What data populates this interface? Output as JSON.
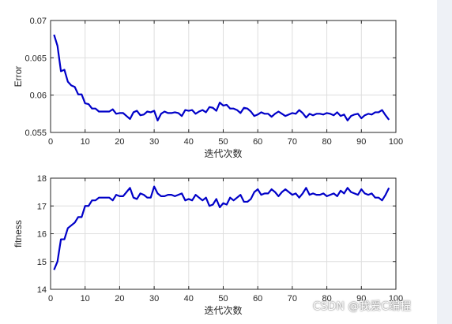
{
  "chart_data": [
    {
      "type": "line",
      "xlabel": "迭代次数",
      "ylabel": "Error",
      "xlim": [
        0,
        100
      ],
      "ylim": [
        0.055,
        0.07
      ],
      "xticks": [
        "0",
        "10",
        "20",
        "30",
        "40",
        "50",
        "60",
        "70",
        "80",
        "90",
        "100"
      ],
      "yticks": [
        "0.055",
        "0.06",
        "0.065",
        "0.07"
      ],
      "grid": true,
      "line_color": "#0000c8",
      "series": [
        {
          "x": [
            1,
            2,
            3,
            4,
            5,
            6,
            7,
            8,
            9,
            10,
            11,
            12,
            13,
            14,
            15,
            16,
            17,
            18,
            19,
            20,
            21,
            22,
            23,
            24,
            25,
            26,
            27,
            28,
            29,
            30,
            31,
            32,
            33,
            34,
            35,
            36,
            37,
            38,
            39,
            40,
            41,
            42,
            43,
            44,
            45,
            46,
            47,
            48,
            49,
            50,
            51,
            52,
            53,
            54,
            55,
            56,
            57,
            58,
            59,
            60,
            61,
            62,
            63,
            64,
            65,
            66,
            67,
            68,
            69,
            70,
            71,
            72,
            73,
            74,
            75,
            76,
            77,
            78,
            79,
            80,
            81,
            82,
            83,
            84,
            85,
            86,
            87,
            88,
            89,
            90,
            91,
            92,
            93,
            94,
            95,
            96,
            97,
            98
          ],
          "y": [
            0.0681,
            0.0666,
            0.0632,
            0.0634,
            0.0618,
            0.0613,
            0.0611,
            0.0601,
            0.0601,
            0.0589,
            0.0588,
            0.0582,
            0.0582,
            0.0578,
            0.0578,
            0.0578,
            0.0578,
            0.0581,
            0.0575,
            0.0576,
            0.0576,
            0.0572,
            0.0568,
            0.0577,
            0.0579,
            0.0573,
            0.0574,
            0.0578,
            0.0577,
            0.0579,
            0.0566,
            0.0575,
            0.0578,
            0.0576,
            0.0576,
            0.0577,
            0.0576,
            0.0572,
            0.058,
            0.0579,
            0.058,
            0.0575,
            0.0578,
            0.058,
            0.0577,
            0.0584,
            0.0583,
            0.0579,
            0.059,
            0.0586,
            0.0587,
            0.0582,
            0.0582,
            0.058,
            0.0576,
            0.0583,
            0.0582,
            0.0578,
            0.0572,
            0.0574,
            0.0577,
            0.0575,
            0.0575,
            0.0571,
            0.0575,
            0.0578,
            0.0575,
            0.0572,
            0.0574,
            0.0576,
            0.0575,
            0.058,
            0.0576,
            0.057,
            0.0575,
            0.0573,
            0.0575,
            0.0575,
            0.0574,
            0.0576,
            0.0575,
            0.0573,
            0.0577,
            0.0572,
            0.0574,
            0.0566,
            0.0572,
            0.0574,
            0.0575,
            0.0569,
            0.0573,
            0.0575,
            0.0574,
            0.0577,
            0.0577,
            0.058,
            0.0573,
            0.0567
          ]
        }
      ]
    },
    {
      "type": "line",
      "xlabel": "迭代次数",
      "ylabel": "fitness",
      "xlim": [
        0,
        100
      ],
      "ylim": [
        14,
        18
      ],
      "xticks": [
        "0",
        "10",
        "20",
        "30",
        "40",
        "50",
        "60",
        "70",
        "80",
        "90",
        "100"
      ],
      "yticks": [
        "14",
        "15",
        "16",
        "17",
        "18"
      ],
      "grid": true,
      "line_color": "#0000c8",
      "series": [
        {
          "x": [
            1,
            2,
            3,
            4,
            5,
            6,
            7,
            8,
            9,
            10,
            11,
            12,
            13,
            14,
            15,
            16,
            17,
            18,
            19,
            20,
            21,
            22,
            23,
            24,
            25,
            26,
            27,
            28,
            29,
            30,
            31,
            32,
            33,
            34,
            35,
            36,
            37,
            38,
            39,
            40,
            41,
            42,
            43,
            44,
            45,
            46,
            47,
            48,
            49,
            50,
            51,
            52,
            53,
            54,
            55,
            56,
            57,
            58,
            59,
            60,
            61,
            62,
            63,
            64,
            65,
            66,
            67,
            68,
            69,
            70,
            71,
            72,
            73,
            74,
            75,
            76,
            77,
            78,
            79,
            80,
            81,
            82,
            83,
            84,
            85,
            86,
            87,
            88,
            89,
            90,
            91,
            92,
            93,
            94,
            95,
            96,
            97,
            98
          ],
          "y": [
            14.7,
            15.0,
            15.8,
            15.8,
            16.2,
            16.3,
            16.4,
            16.6,
            16.6,
            17.0,
            17.0,
            17.2,
            17.2,
            17.3,
            17.3,
            17.3,
            17.3,
            17.2,
            17.4,
            17.35,
            17.35,
            17.5,
            17.65,
            17.3,
            17.25,
            17.45,
            17.4,
            17.3,
            17.3,
            17.7,
            17.45,
            17.35,
            17.35,
            17.4,
            17.4,
            17.35,
            17.4,
            17.45,
            17.2,
            17.25,
            17.2,
            17.4,
            17.3,
            17.2,
            17.3,
            17.0,
            17.05,
            17.25,
            16.95,
            17.1,
            17.05,
            17.3,
            17.2,
            17.3,
            17.4,
            17.15,
            17.15,
            17.25,
            17.5,
            17.6,
            17.4,
            17.45,
            17.45,
            17.6,
            17.5,
            17.35,
            17.5,
            17.6,
            17.5,
            17.4,
            17.45,
            17.3,
            17.45,
            17.65,
            17.4,
            17.45,
            17.4,
            17.4,
            17.45,
            17.35,
            17.4,
            17.45,
            17.35,
            17.55,
            17.45,
            17.65,
            17.5,
            17.45,
            17.4,
            17.6,
            17.45,
            17.4,
            17.45,
            17.3,
            17.3,
            17.2,
            17.4,
            17.65
          ]
        }
      ]
    }
  ],
  "watermark": "CSDN @我爱C编程"
}
